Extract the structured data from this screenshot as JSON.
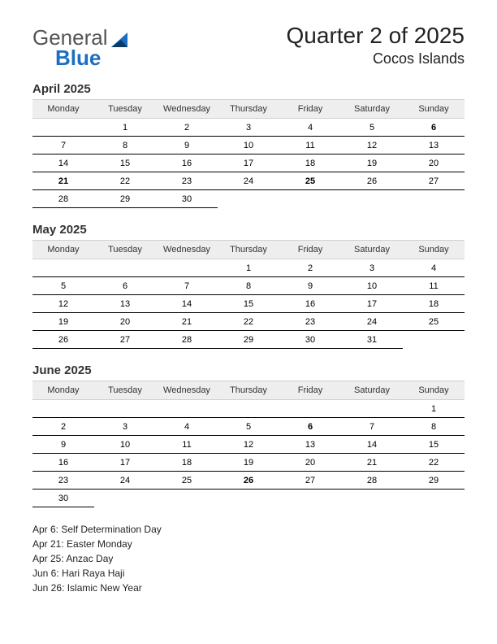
{
  "logo": {
    "line1": "General",
    "line2": "Blue"
  },
  "header": {
    "title": "Quarter 2 of 2025",
    "subtitle": "Cocos Islands"
  },
  "weekdays": [
    "Monday",
    "Tuesday",
    "Wednesday",
    "Thursday",
    "Friday",
    "Saturday",
    "Sunday"
  ],
  "colors": {
    "holiday": "#cc0000",
    "header_bg": "#eeeeee",
    "row_border": "#000000",
    "logo_blue": "#1b6ec2",
    "logo_grey": "#555555",
    "text": "#000000",
    "background": "#ffffff"
  },
  "months": [
    {
      "title": "April 2025",
      "weeks": [
        [
          null,
          1,
          2,
          3,
          4,
          5,
          6
        ],
        [
          7,
          8,
          9,
          10,
          11,
          12,
          13
        ],
        [
          14,
          15,
          16,
          17,
          18,
          19,
          20
        ],
        [
          21,
          22,
          23,
          24,
          25,
          26,
          27
        ],
        [
          28,
          29,
          30,
          null,
          null,
          null,
          null
        ]
      ],
      "holidays": [
        6,
        21,
        25
      ]
    },
    {
      "title": "May 2025",
      "weeks": [
        [
          null,
          null,
          null,
          1,
          2,
          3,
          4
        ],
        [
          5,
          6,
          7,
          8,
          9,
          10,
          11
        ],
        [
          12,
          13,
          14,
          15,
          16,
          17,
          18
        ],
        [
          19,
          20,
          21,
          22,
          23,
          24,
          25
        ],
        [
          26,
          27,
          28,
          29,
          30,
          31,
          null
        ]
      ],
      "holidays": []
    },
    {
      "title": "June 2025",
      "weeks": [
        [
          null,
          null,
          null,
          null,
          null,
          null,
          1
        ],
        [
          2,
          3,
          4,
          5,
          6,
          7,
          8
        ],
        [
          9,
          10,
          11,
          12,
          13,
          14,
          15
        ],
        [
          16,
          17,
          18,
          19,
          20,
          21,
          22
        ],
        [
          23,
          24,
          25,
          26,
          27,
          28,
          29
        ],
        [
          30,
          null,
          null,
          null,
          null,
          null,
          null
        ]
      ],
      "holidays": [
        6,
        26
      ]
    }
  ],
  "holiday_list": [
    "Apr 6: Self Determination Day",
    "Apr 21: Easter Monday",
    "Apr 25: Anzac Day",
    "Jun 6: Hari Raya Haji",
    "Jun 26: Islamic New Year"
  ]
}
